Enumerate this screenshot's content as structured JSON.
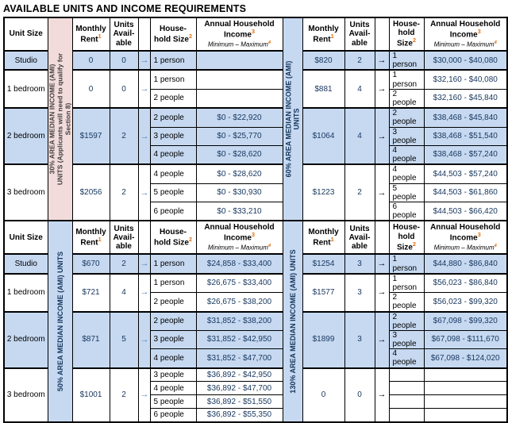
{
  "title": "AVAILABLE UNITS AND INCOME REQUIREMENTS",
  "arrow": "→",
  "colors": {
    "row_shade_blue": "#c6d9f1",
    "ami30_pink": "#f2dcdb",
    "value_navy": "#17365d",
    "arrow_blue": "#4f81bd",
    "superscript_orange": "#e36c09",
    "border_black": "#000000"
  },
  "header": {
    "unit_size": "Unit Size",
    "monthly_rent": "Monthly\nRent",
    "monthly_rent_sup": "1",
    "units_available": "Units\nAvail-\nable",
    "household_left": "House-\nhold Size",
    "household_right": "House-\nhold\nSize",
    "household_sup": "2",
    "income": "Annual Household\nIncome",
    "income_sup": "3",
    "income_range": "Minimum – Maximum",
    "income_range_sup": "4"
  },
  "sections": [
    {
      "left_label": "30% AREA MEDIAN INCOME (AMI)\nUNITS (Applicants will need to qualify for\nSection 8)",
      "right_label": "60% AREA MEDIAN INCOME (AMI)\nUNITS",
      "groups": [
        {
          "unit": "Studio",
          "shaded": true,
          "left": {
            "rent": "0",
            "units": "0"
          },
          "right": {
            "rent": "$820",
            "units": "2"
          },
          "rows": [
            {
              "lh": "1 person",
              "li": "",
              "rh": "1 person",
              "ri": "$30,000 - $40,080"
            }
          ]
        },
        {
          "unit": "1 bedroom",
          "shaded": false,
          "left": {
            "rent": "0",
            "units": "0"
          },
          "right": {
            "rent": "$881",
            "units": "4"
          },
          "rows": [
            {
              "lh": "1 person",
              "li": "",
              "rh": "1 person",
              "ri": "$32,160 - $40,080"
            },
            {
              "lh": "2 people",
              "li": "",
              "rh": "2 people",
              "ri": "$32,160 - $45,840"
            }
          ]
        },
        {
          "unit": "2 bedroom",
          "shaded": true,
          "left": {
            "rent": "$1597",
            "units": "2"
          },
          "right": {
            "rent": "$1064",
            "units": "4"
          },
          "rows": [
            {
              "lh": "2 people",
              "li": "$0 - $22,920",
              "rh": "2 people",
              "ri": "$38,468 - $45,840"
            },
            {
              "lh": "3 people",
              "li": "$0 - $25,770",
              "rh": "3 people",
              "ri": "$38,468 - $51,540"
            },
            {
              "lh": "4 people",
              "li": "$0 - $28,620",
              "rh": "4 people",
              "ri": "$38,468 - $57,240"
            }
          ]
        },
        {
          "unit": "3 bedroom",
          "shaded": false,
          "left": {
            "rent": "$2056",
            "units": "2"
          },
          "right": {
            "rent": "$1223",
            "units": "2"
          },
          "rows": [
            {
              "lh": "4 people",
              "li": "$0 - $28,620",
              "rh": "4 people",
              "ri": "$44,503 - $57,240"
            },
            {
              "lh": "5 people",
              "li": "$0 - $30,930",
              "rh": "5 people",
              "ri": "$44,503 - $61,860"
            },
            {
              "lh": "6 people",
              "li": "$0 - $33,210",
              "rh": "6 people",
              "ri": "$44,503 - $66,420"
            }
          ]
        }
      ]
    },
    {
      "left_label": "50% AREA MEDIAN INCOME (AMI) UNITS",
      "right_label": "130% AREA MEDIAN INCOME (AMI) UNITS",
      "groups": [
        {
          "unit": "Studio",
          "shaded": true,
          "left": {
            "rent": "$670",
            "units": "2"
          },
          "right": {
            "rent": "$1254",
            "units": "3"
          },
          "rows": [
            {
              "lh": "1 person",
              "li": "$24,858 - $33,400",
              "rh": "1 person",
              "ri": "$44,880 - $86,840"
            }
          ]
        },
        {
          "unit": "1 bedroom",
          "shaded": false,
          "left": {
            "rent": "$721",
            "units": "4"
          },
          "right": {
            "rent": "$1577",
            "units": "3"
          },
          "rows": [
            {
              "lh": "1 person",
              "li": "$26,675 - $33,400",
              "rh": "1 person",
              "ri": "$56,023 - $86,840"
            },
            {
              "lh": "2 people",
              "li": "$26,675 - $38,200",
              "rh": "2 people",
              "ri": "$56,023 - $99,320"
            }
          ]
        },
        {
          "unit": "2 bedroom",
          "shaded": true,
          "left": {
            "rent": "$871",
            "units": "5"
          },
          "right": {
            "rent": "$1899",
            "units": "3"
          },
          "rows": [
            {
              "lh": "2 people",
              "li": "$31,852 - $38,200",
              "rh": "2 people",
              "ri": "$67,098 - $99,320"
            },
            {
              "lh": "3 people",
              "li": "$31,852 - $42,950",
              "rh": "3 people",
              "ri": "$67,098 - $111,670"
            },
            {
              "lh": "4 people",
              "li": "$31,852 - $47,700",
              "rh": "4 people",
              "ri": "$67,098 - $124,020"
            }
          ]
        },
        {
          "unit": "3 bedroom",
          "shaded": false,
          "left": {
            "rent": "$1001",
            "units": "2"
          },
          "right": {
            "rent": "0",
            "units": "0"
          },
          "rows": [
            {
              "lh": "3 people",
              "li": "$36,892 - $42,950",
              "rh": "",
              "ri": ""
            },
            {
              "lh": "4 people",
              "li": "$36,892 - $47,700",
              "rh": "",
              "ri": ""
            },
            {
              "lh": "5 people",
              "li": "$36,892 - $51,550",
              "rh": "",
              "ri": ""
            },
            {
              "lh": "6 people",
              "li": "$36,892 - $55,350",
              "rh": "",
              "ri": ""
            }
          ]
        }
      ]
    }
  ]
}
